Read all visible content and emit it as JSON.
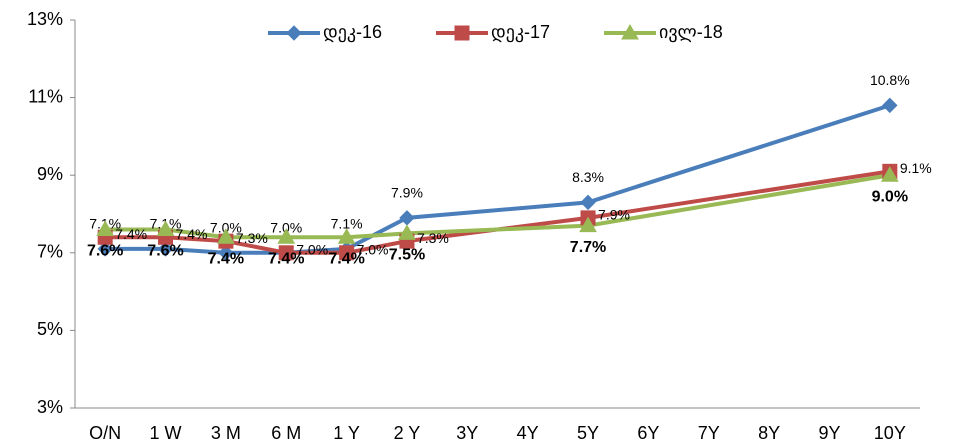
{
  "chart_data": {
    "type": "line",
    "categories": [
      "O/N",
      "1 W",
      "3 M",
      "6 M",
      "1 Y",
      "2 Y",
      "3Y",
      "4Y",
      "5Y",
      "6Y",
      "7Y",
      "8Y",
      "9Y",
      "10Y"
    ],
    "ylim": [
      3,
      13
    ],
    "yticks": [
      {
        "value": 3,
        "label": "3%"
      },
      {
        "value": 5,
        "label": "5%"
      },
      {
        "value": 7,
        "label": "7%"
      },
      {
        "value": 9,
        "label": "9%"
      },
      {
        "value": 11,
        "label": "11%"
      },
      {
        "value": 13,
        "label": "13%"
      }
    ],
    "legend": "top",
    "series": [
      {
        "name": "დეკ-16",
        "color": "#4a7ebb",
        "marker": "diamond",
        "values": [
          7.1,
          7.1,
          7.0,
          7.0,
          7.1,
          7.9,
          null,
          null,
          8.3,
          null,
          null,
          null,
          null,
          10.8
        ],
        "value_labels": [
          "7.1%",
          "7.1%",
          "7.0%",
          "7.0%",
          "7.1%",
          "7.9%",
          null,
          null,
          "8.3%",
          null,
          null,
          null,
          null,
          "10.8%"
        ]
      },
      {
        "name": "დეკ-17",
        "color": "#be4b48",
        "marker": "square",
        "values": [
          7.4,
          7.4,
          7.3,
          7.0,
          7.0,
          7.3,
          null,
          null,
          7.9,
          null,
          null,
          null,
          null,
          9.1
        ],
        "value_labels": [
          "7.4%",
          "7.4%",
          "7.3%",
          "7.0%",
          "7.0%",
          "7.3%",
          null,
          null,
          "7.9%",
          null,
          null,
          null,
          null,
          "9.1%"
        ]
      },
      {
        "name": "ივლ-18",
        "color": "#98b954",
        "marker": "triangle",
        "values": [
          7.6,
          7.6,
          7.4,
          7.4,
          7.4,
          7.5,
          null,
          null,
          7.7,
          null,
          null,
          null,
          null,
          9.0
        ],
        "value_labels": [
          "7.6%",
          "7.6%",
          "7.4%",
          "7.4%",
          "7.4%",
          "7.5%",
          null,
          null,
          "7.7%",
          null,
          null,
          null,
          null,
          "9.0%"
        ]
      }
    ]
  }
}
